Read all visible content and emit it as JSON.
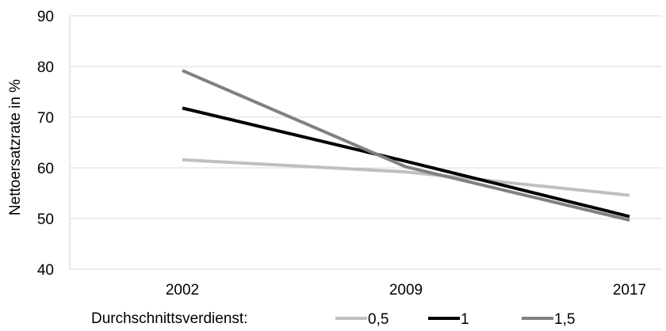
{
  "chart_data": {
    "type": "line",
    "title": "",
    "xlabel": "",
    "ylabel": "Nettoersatzrate in %",
    "categories": [
      "2002",
      "2009",
      "2017"
    ],
    "ylim": [
      40,
      90
    ],
    "yticks": [
      40,
      50,
      60,
      70,
      80,
      90
    ],
    "grid": true,
    "legend_position": "bottom",
    "legend_title": "Durchschnittsverdienst:",
    "series": [
      {
        "name": "0,5",
        "values": [
          61.6,
          59.2,
          54.6
        ],
        "color": "#bfbfbf"
      },
      {
        "name": "1",
        "values": [
          71.8,
          61.3,
          50.4
        ],
        "color": "#000000"
      },
      {
        "name": "1,5",
        "values": [
          79.2,
          60.2,
          49.7
        ],
        "color": "#808080"
      }
    ]
  }
}
